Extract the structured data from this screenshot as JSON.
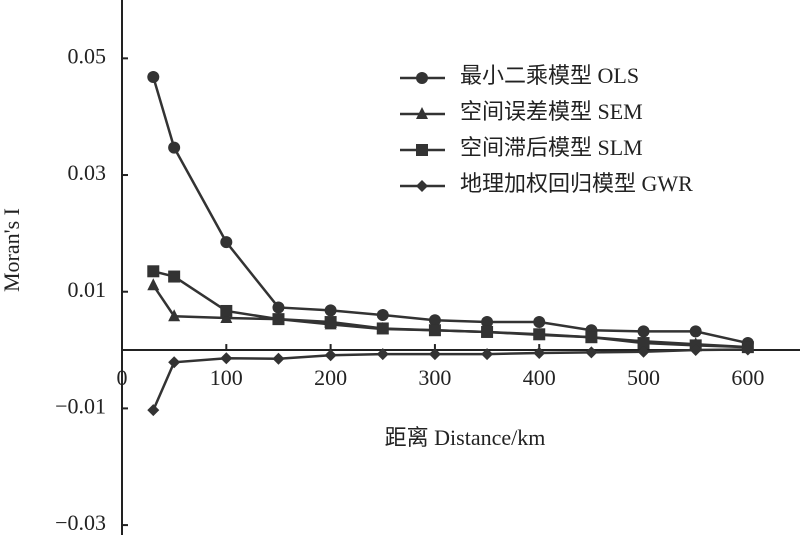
{
  "chart_data": {
    "type": "line",
    "x_label": "距离 Distance/km",
    "y_label": "Moran's I",
    "x": [
      30,
      50,
      100,
      150,
      200,
      250,
      300,
      350,
      400,
      450,
      500,
      550,
      600
    ],
    "series": [
      {
        "name": "最小二乘模型 OLS",
        "color": "#333333",
        "marker": "circle",
        "values": [
          0.0468,
          0.0347,
          0.0185,
          0.0073,
          0.0068,
          0.006,
          0.0051,
          0.0048,
          0.0048,
          0.0034,
          0.0032,
          0.0032,
          0.0012
        ]
      },
      {
        "name": "空间误差模型 SEM",
        "color": "#333333",
        "marker": "triangle",
        "values": [
          0.0111,
          0.0058,
          0.0055,
          0.0053,
          0.0044,
          0.0036,
          0.0034,
          0.0031,
          0.0026,
          0.0022,
          0.0015,
          0.001,
          0.0005
        ]
      },
      {
        "name": "空间滞后模型 SLM",
        "color": "#333333",
        "marker": "square",
        "values": [
          0.0135,
          0.0126,
          0.0067,
          0.0053,
          0.0048,
          0.0037,
          0.0034,
          0.0031,
          0.0027,
          0.0022,
          0.0012,
          0.0008,
          0.0005
        ]
      },
      {
        "name": "地理加权回归模型 GWR",
        "color": "#333333",
        "marker": "diamond",
        "values": [
          -0.0103,
          -0.0021,
          -0.0014,
          -0.0015,
          -0.0009,
          -0.0007,
          -0.0007,
          -0.0007,
          -0.0005,
          -0.0004,
          -0.0003,
          0,
          0.0001
        ]
      }
    ],
    "xlim": [
      0,
      650
    ],
    "xticks": [
      0,
      100,
      200,
      300,
      400,
      500,
      600
    ],
    "ylim": [
      -0.0317,
      0.06
    ],
    "yticks": [
      {
        "value": -0.03,
        "label": "−0.03"
      },
      {
        "value": -0.01,
        "label": "−0.01"
      },
      0.01,
      0.03,
      0.05
    ],
    "grid": false,
    "legend": "upper right"
  }
}
